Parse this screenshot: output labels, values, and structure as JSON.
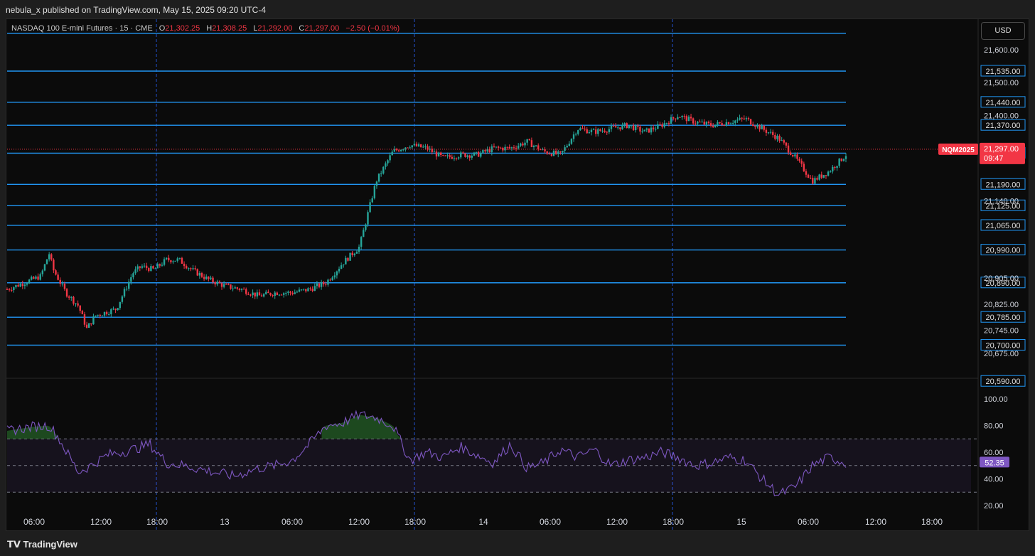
{
  "header": {
    "publisher": "nebula_x published on TradingView.com, May 15, 2025 09:20 UTC-4"
  },
  "legend": {
    "symbol": "NASDAQ 100 E-mini Futures · 15 · CME",
    "open_key": "O",
    "open": "21,302.25",
    "high_key": "H",
    "high": "21,308.25",
    "low_key": "L",
    "low": "21,292.00",
    "close_key": "C",
    "close": "21,297.00",
    "change": "−2.50 (−0.01%)"
  },
  "currency": "USD",
  "colors": {
    "up": "#26a69a",
    "down": "#f23645",
    "level": "#2196f3",
    "rsi": "#7e57c2",
    "price_tag": "#f23645"
  },
  "price_axis": {
    "ticks": [
      "21,600.00",
      "21,500.00",
      "21,400.00",
      "21,140.00",
      "20,905.00",
      "20,825.00",
      "20,745.00",
      "20,675.00"
    ],
    "tick_values": [
      21600,
      21500,
      21400,
      21140,
      20905,
      20825,
      20745,
      20675
    ]
  },
  "level_labels": [
    "21,535.00",
    "21,440.00",
    "21,370.00",
    "21,285.00",
    "21,190.00",
    "21,125.00",
    "21,065.00",
    "20,990.00",
    "20,890.00",
    "20,785.00",
    "20,700.00",
    "20,590.00"
  ],
  "level_values": [
    21535,
    21440,
    21370,
    21285,
    21190,
    21125,
    21065,
    20990,
    20890,
    20785,
    20700,
    20590
  ],
  "last_price": {
    "symbol": "NQM2025",
    "price": "21,297.00",
    "countdown": "09:47",
    "value": 21297
  },
  "rsi": {
    "ticks": [
      "100.00",
      "80.00",
      "60.00",
      "40.00",
      "20.00"
    ],
    "tick_values": [
      100,
      80,
      60,
      40,
      20
    ],
    "value": "52.35",
    "upper": 70,
    "mid": 50,
    "lower": 30
  },
  "time_axis": [
    "06:00",
    "12:00",
    "18:00",
    "13",
    "06:00",
    "12:00",
    "18:00",
    "14",
    "06:00",
    "12:00",
    "18:00",
    "15",
    "06:00",
    "12:00",
    "18:00"
  ],
  "footer": {
    "brand": "TradingView"
  },
  "chart_data": {
    "type": "candlestick",
    "symbol": "NQM2025",
    "interval": "15",
    "price_path": [
      [
        0,
        20870
      ],
      [
        0.02,
        20890
      ],
      [
        0.04,
        20910
      ],
      [
        0.05,
        20980
      ],
      [
        0.055,
        20930
      ],
      [
        0.07,
        20860
      ],
      [
        0.085,
        20820
      ],
      [
        0.095,
        20750
      ],
      [
        0.105,
        20790
      ],
      [
        0.13,
        20810
      ],
      [
        0.15,
        20920
      ],
      [
        0.16,
        20940
      ],
      [
        0.175,
        20930
      ],
      [
        0.19,
        20960
      ],
      [
        0.205,
        20960
      ],
      [
        0.22,
        20930
      ],
      [
        0.24,
        20900
      ],
      [
        0.26,
        20880
      ],
      [
        0.28,
        20870
      ],
      [
        0.3,
        20850
      ],
      [
        0.32,
        20860
      ],
      [
        0.34,
        20860
      ],
      [
        0.36,
        20870
      ],
      [
        0.38,
        20890
      ],
      [
        0.4,
        20950
      ],
      [
        0.42,
        21000
      ],
      [
        0.44,
        21200
      ],
      [
        0.46,
        21290
      ],
      [
        0.48,
        21310
      ],
      [
        0.5,
        21300
      ],
      [
        0.52,
        21270
      ],
      [
        0.54,
        21280
      ],
      [
        0.56,
        21280
      ],
      [
        0.58,
        21300
      ],
      [
        0.6,
        21300
      ],
      [
        0.62,
        21320
      ],
      [
        0.64,
        21290
      ],
      [
        0.66,
        21280
      ],
      [
        0.68,
        21360
      ],
      [
        0.7,
        21350
      ],
      [
        0.72,
        21360
      ],
      [
        0.74,
        21370
      ],
      [
        0.76,
        21350
      ],
      [
        0.78,
        21370
      ],
      [
        0.8,
        21400
      ],
      [
        0.82,
        21380
      ],
      [
        0.84,
        21370
      ],
      [
        0.86,
        21380
      ],
      [
        0.88,
        21390
      ],
      [
        0.9,
        21360
      ],
      [
        0.92,
        21330
      ],
      [
        0.94,
        21270
      ],
      [
        0.96,
        21200
      ],
      [
        0.98,
        21230
      ],
      [
        1,
        21280
      ]
    ],
    "rsi_path": [
      [
        0,
        76
      ],
      [
        0.03,
        79
      ],
      [
        0.05,
        80
      ],
      [
        0.06,
        72
      ],
      [
        0.085,
        45
      ],
      [
        0.1,
        50
      ],
      [
        0.12,
        58
      ],
      [
        0.15,
        62
      ],
      [
        0.17,
        66
      ],
      [
        0.19,
        52
      ],
      [
        0.21,
        50
      ],
      [
        0.24,
        46
      ],
      [
        0.27,
        42
      ],
      [
        0.3,
        48
      ],
      [
        0.32,
        50
      ],
      [
        0.34,
        54
      ],
      [
        0.36,
        66
      ],
      [
        0.38,
        80
      ],
      [
        0.4,
        82
      ],
      [
        0.42,
        88
      ],
      [
        0.44,
        86
      ],
      [
        0.46,
        80
      ],
      [
        0.48,
        54
      ],
      [
        0.5,
        60
      ],
      [
        0.52,
        56
      ],
      [
        0.54,
        64
      ],
      [
        0.56,
        58
      ],
      [
        0.58,
        52
      ],
      [
        0.6,
        66
      ],
      [
        0.62,
        48
      ],
      [
        0.64,
        52
      ],
      [
        0.66,
        62
      ],
      [
        0.68,
        56
      ],
      [
        0.7,
        62
      ],
      [
        0.72,
        50
      ],
      [
        0.74,
        54
      ],
      [
        0.76,
        56
      ],
      [
        0.78,
        60
      ],
      [
        0.8,
        56
      ],
      [
        0.82,
        50
      ],
      [
        0.84,
        52
      ],
      [
        0.86,
        56
      ],
      [
        0.88,
        54
      ],
      [
        0.9,
        40
      ],
      [
        0.92,
        28
      ],
      [
        0.94,
        34
      ],
      [
        0.96,
        50
      ],
      [
        0.98,
        56
      ],
      [
        1,
        52
      ]
    ]
  }
}
